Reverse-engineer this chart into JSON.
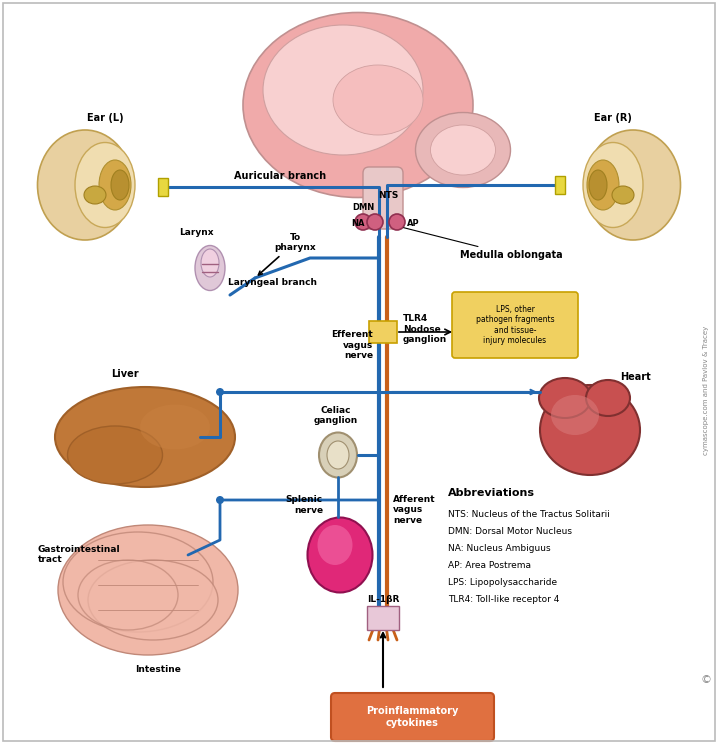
{
  "bg_color": "#ffffff",
  "border_color": "#bbbbbb",
  "blue": "#2268b0",
  "orange": "#c8601a",
  "pink_brain_outer": "#f0aaaa",
  "pink_brain_inner": "#f8d0d0",
  "pink_brain_mid": "#f5bebe",
  "cereb_color": "#e8b8b8",
  "brainstem_color": "#e8c8c8",
  "node_pink": "#d06080",
  "node_outline": "#903050",
  "yellow_box_fill": "#f0d060",
  "yellow_box_edge": "#c8a000",
  "orange_box_fill": "#e07040",
  "orange_box_edge": "#c05020",
  "liver_main": "#c07838",
  "liver_dark": "#a06028",
  "intestine_fill": "#f0b8a8",
  "intestine_edge": "#c08878",
  "spleen_fill": "#e02878",
  "spleen_light": "#f060a0",
  "heart_main": "#c85050",
  "heart_light": "#d87878",
  "heart_edge": "#803030",
  "ear_outer": "#d4b040",
  "ear_mid": "#e8c860",
  "ear_inner": "#b89020",
  "ear_canal": "#c0a030",
  "ganglion_fill": "#d8d0b8",
  "ganglion_edge": "#a09070",
  "electrode_fill": "#e8d840",
  "electrode_edge": "#b0a000",
  "larynx_fill": "#e0c8d8",
  "larynx_edge": "#b090b0",
  "abbrev_title_size": 8,
  "abbrev_line_size": 6.5,
  "label_size": 7,
  "small_label_size": 6,
  "credit_text": "cymascope.com and Pavlov & Tracey",
  "abbrev_title": "Abbreviations",
  "abbrev_lines": [
    "NTS: Nucleus of the Tractus Solitarii",
    "DMN: Dorsal Motor Nucleus",
    "NA: Nucleus Ambiguus",
    "AP: Area Postrema",
    "LPS: Lipopolysaccharide",
    "TLR4: Toll-like receptor 4"
  ],
  "labels": {
    "ear_l": "Ear (L)",
    "ear_r": "Ear (R)",
    "auricular": "Auricular branch",
    "larynx": "Larynx",
    "to_pharynx": "To\npharynx",
    "laryngeal": "Laryngeal branch",
    "efferent": "Efferent\nvagus\nnerve",
    "afferent": "Afferent\nvagus\nnerve",
    "nts": "NTS",
    "dmn": "DMN",
    "na": "NA",
    "ap": "AP",
    "medulla": "Medulla oblongata",
    "lps_box": "LPS, other\npathogen fragments\nand tissue-\ninjury molecules",
    "tlr4": "TLR4\nNodose\nganglion",
    "heart": "Heart",
    "liver": "Liver",
    "gi": "Gastrointestinal\ntract",
    "intestine": "Intestine",
    "celiac": "Celiac\nganglion",
    "splenic": "Splenic\nnerve",
    "il1br": "IL-1βR",
    "proinflam": "Proinflammatory\ncytokines"
  }
}
